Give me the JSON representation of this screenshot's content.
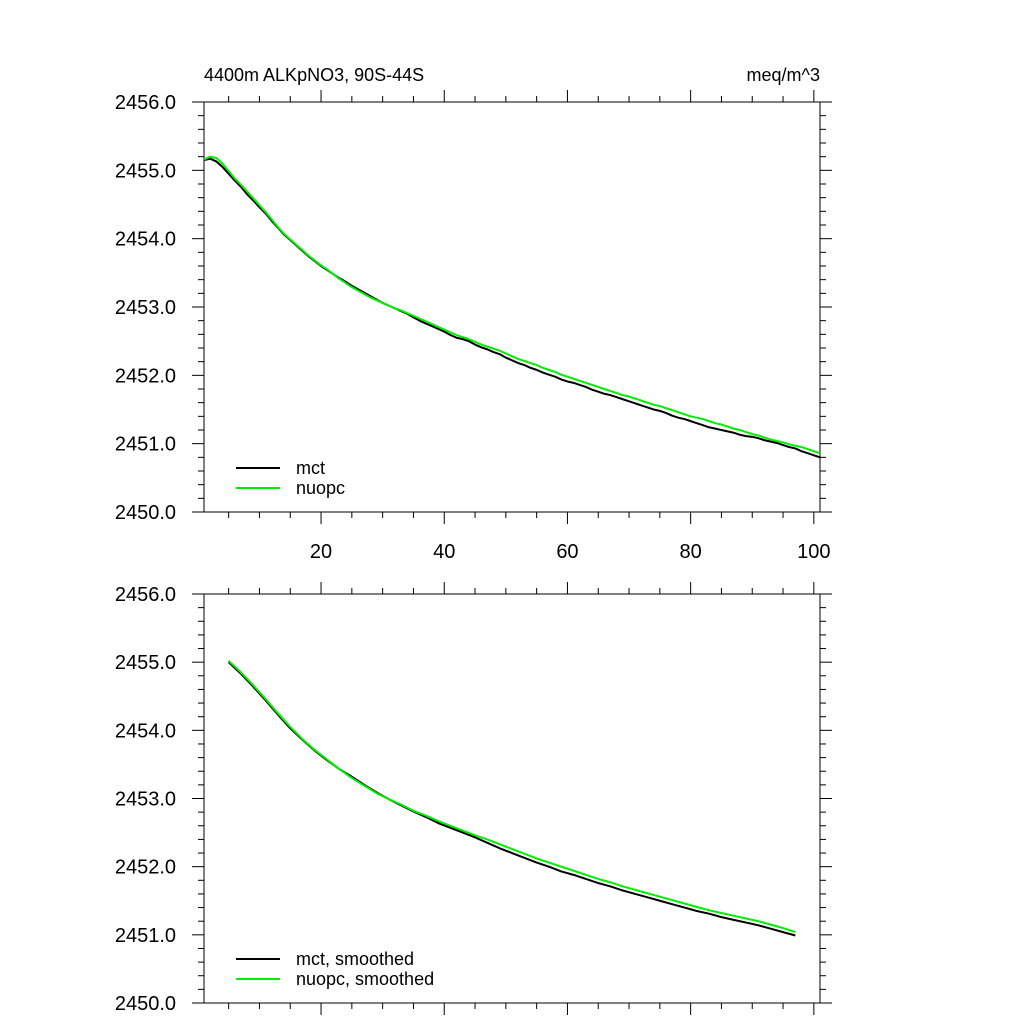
{
  "header": {
    "left_title": "4400m ALKpNO3, 90S-44S",
    "right_title": "meq/m^3"
  },
  "colors": {
    "mct": "#000000",
    "nuopc": "#00ee00"
  },
  "chart_data": [
    {
      "type": "line",
      "title": "4400m ALKpNO3, 90S-44S",
      "units": "meq/m^3",
      "xlim": [
        1,
        101
      ],
      "ylim": [
        2450.0,
        2456.0
      ],
      "x_ticks": [
        20,
        40,
        60,
        80,
        100
      ],
      "x_tick_labels": [
        "20",
        "40",
        "60",
        "80",
        "100"
      ],
      "y_ticks": [
        2450.0,
        2451.0,
        2452.0,
        2453.0,
        2454.0,
        2455.0,
        2456.0
      ],
      "y_tick_labels": [
        "2450.0",
        "2451.0",
        "2452.0",
        "2453.0",
        "2454.0",
        "2455.0",
        "2456.0"
      ],
      "grid": false,
      "legend_position": "bottom-left",
      "series": [
        {
          "name": "mct",
          "color": "#000000",
          "x": [
            1,
            2,
            3,
            4,
            5,
            6,
            7,
            8,
            9,
            10,
            11,
            12,
            13,
            14,
            15,
            16,
            17,
            18,
            19,
            20,
            21,
            22,
            23,
            24,
            25,
            26,
            27,
            28,
            29,
            30,
            31,
            32,
            33,
            34,
            35,
            36,
            37,
            38,
            39,
            40,
            41,
            42,
            43,
            44,
            45,
            46,
            47,
            48,
            49,
            50,
            51,
            52,
            53,
            54,
            55,
            56,
            57,
            58,
            59,
            60,
            61,
            62,
            63,
            64,
            65,
            66,
            67,
            68,
            69,
            70,
            71,
            72,
            73,
            74,
            75,
            76,
            77,
            78,
            79,
            80,
            81,
            82,
            83,
            84,
            85,
            86,
            87,
            88,
            89,
            90,
            91,
            92,
            93,
            94,
            95,
            96,
            97,
            98,
            99,
            100,
            101
          ],
          "values": [
            2455.15,
            2455.17,
            2455.13,
            2455.05,
            2454.95,
            2454.85,
            2454.76,
            2454.65,
            2454.56,
            2454.46,
            2454.37,
            2454.26,
            2454.16,
            2454.06,
            2453.98,
            2453.9,
            2453.82,
            2453.74,
            2453.67,
            2453.6,
            2453.54,
            2453.48,
            2453.42,
            2453.37,
            2453.31,
            2453.26,
            2453.21,
            2453.16,
            2453.11,
            2453.06,
            2453.02,
            2452.98,
            2452.94,
            2452.9,
            2452.85,
            2452.8,
            2452.76,
            2452.72,
            2452.68,
            2452.64,
            2452.59,
            2452.55,
            2452.53,
            2452.5,
            2452.45,
            2452.41,
            2452.38,
            2452.34,
            2452.31,
            2452.26,
            2452.22,
            2452.18,
            2452.15,
            2452.11,
            2452.08,
            2452.04,
            2452.01,
            2451.98,
            2451.94,
            2451.91,
            2451.89,
            2451.86,
            2451.83,
            2451.79,
            2451.76,
            2451.73,
            2451.71,
            2451.68,
            2451.65,
            2451.62,
            2451.59,
            2451.56,
            2451.53,
            2451.5,
            2451.48,
            2451.45,
            2451.41,
            2451.38,
            2451.36,
            2451.33,
            2451.3,
            2451.27,
            2451.24,
            2451.22,
            2451.2,
            2451.18,
            2451.16,
            2451.13,
            2451.11,
            2451.1,
            2451.08,
            2451.05,
            2451.03,
            2451.01,
            2450.98,
            2450.95,
            2450.93,
            2450.89,
            2450.86,
            2450.83,
            2450.8
          ]
        },
        {
          "name": "nuopc",
          "color": "#00ee00",
          "x": [
            1,
            2,
            3,
            4,
            5,
            6,
            7,
            8,
            9,
            10,
            11,
            12,
            13,
            14,
            15,
            16,
            17,
            18,
            19,
            20,
            21,
            22,
            23,
            24,
            25,
            26,
            27,
            28,
            29,
            30,
            31,
            32,
            33,
            34,
            35,
            36,
            37,
            38,
            39,
            40,
            41,
            42,
            43,
            44,
            45,
            46,
            47,
            48,
            49,
            50,
            51,
            52,
            53,
            54,
            55,
            56,
            57,
            58,
            59,
            60,
            61,
            62,
            63,
            64,
            65,
            66,
            67,
            68,
            69,
            70,
            71,
            72,
            73,
            74,
            75,
            76,
            77,
            78,
            79,
            80,
            81,
            82,
            83,
            84,
            85,
            86,
            87,
            88,
            89,
            90,
            91,
            92,
            93,
            94,
            95,
            96,
            97,
            98,
            99,
            100,
            101
          ],
          "values": [
            2455.16,
            2455.2,
            2455.18,
            2455.1,
            2454.99,
            2454.88,
            2454.79,
            2454.69,
            2454.59,
            2454.49,
            2454.39,
            2454.28,
            2454.17,
            2454.07,
            2453.99,
            2453.91,
            2453.83,
            2453.75,
            2453.68,
            2453.61,
            2453.55,
            2453.48,
            2453.41,
            2453.35,
            2453.29,
            2453.24,
            2453.19,
            2453.14,
            2453.1,
            2453.06,
            2453.02,
            2452.98,
            2452.95,
            2452.91,
            2452.87,
            2452.83,
            2452.79,
            2452.75,
            2452.71,
            2452.67,
            2452.63,
            2452.59,
            2452.56,
            2452.53,
            2452.49,
            2452.45,
            2452.42,
            2452.39,
            2452.36,
            2452.32,
            2452.28,
            2452.24,
            2452.21,
            2452.18,
            2452.15,
            2452.11,
            2452.08,
            2452.05,
            2452.01,
            2451.98,
            2451.95,
            2451.92,
            2451.89,
            2451.86,
            2451.83,
            2451.8,
            2451.77,
            2451.74,
            2451.71,
            2451.69,
            2451.66,
            2451.63,
            2451.6,
            2451.57,
            2451.55,
            2451.52,
            2451.49,
            2451.46,
            2451.43,
            2451.4,
            2451.38,
            2451.36,
            2451.33,
            2451.3,
            2451.28,
            2451.25,
            2451.22,
            2451.2,
            2451.17,
            2451.14,
            2451.12,
            2451.09,
            2451.06,
            2451.04,
            2451.02,
            2450.99,
            2450.97,
            2450.95,
            2450.92,
            2450.89,
            2450.86
          ]
        }
      ]
    },
    {
      "type": "line",
      "xlim": [
        1,
        101
      ],
      "ylim": [
        2450.0,
        2456.0
      ],
      "x_ticks": [
        20,
        40,
        60,
        80,
        100
      ],
      "x_tick_labels": [],
      "y_ticks": [
        2450.0,
        2451.0,
        2452.0,
        2453.0,
        2454.0,
        2455.0,
        2456.0
      ],
      "y_tick_labels": [
        "2450.0",
        "2451.0",
        "2452.0",
        "2453.0",
        "2454.0",
        "2455.0",
        "2456.0"
      ],
      "grid": false,
      "legend_position": "bottom-left",
      "series": [
        {
          "name": "mct, smoothed",
          "color": "#000000",
          "x": [
            5,
            7,
            9,
            11,
            13,
            15,
            17,
            19,
            21,
            23,
            25,
            27,
            29,
            31,
            33,
            35,
            37,
            39,
            41,
            43,
            45,
            47,
            49,
            51,
            53,
            55,
            57,
            59,
            61,
            63,
            65,
            67,
            69,
            71,
            73,
            75,
            77,
            79,
            81,
            83,
            85,
            87,
            89,
            91,
            93,
            95,
            97
          ],
          "values": [
            2455.0,
            2454.83,
            2454.64,
            2454.44,
            2454.23,
            2454.03,
            2453.86,
            2453.7,
            2453.56,
            2453.43,
            2453.32,
            2453.2,
            2453.09,
            2452.99,
            2452.9,
            2452.81,
            2452.73,
            2452.64,
            2452.57,
            2452.5,
            2452.43,
            2452.35,
            2452.27,
            2452.2,
            2452.13,
            2452.06,
            2452.0,
            2451.93,
            2451.88,
            2451.82,
            2451.76,
            2451.71,
            2451.65,
            2451.6,
            2451.55,
            2451.5,
            2451.45,
            2451.4,
            2451.35,
            2451.31,
            2451.26,
            2451.22,
            2451.18,
            2451.14,
            2451.09,
            2451.04,
            2450.99
          ]
        },
        {
          "name": "nuopc, smoothed",
          "color": "#00ee00",
          "x": [
            5,
            7,
            9,
            11,
            13,
            15,
            17,
            19,
            21,
            23,
            25,
            27,
            29,
            31,
            33,
            35,
            37,
            39,
            41,
            43,
            45,
            47,
            49,
            51,
            53,
            55,
            57,
            59,
            61,
            63,
            65,
            67,
            69,
            71,
            73,
            75,
            77,
            79,
            81,
            83,
            85,
            87,
            89,
            91,
            93,
            95,
            97
          ],
          "values": [
            2455.02,
            2454.85,
            2454.66,
            2454.46,
            2454.25,
            2454.05,
            2453.87,
            2453.71,
            2453.57,
            2453.43,
            2453.3,
            2453.19,
            2453.08,
            2452.99,
            2452.91,
            2452.82,
            2452.75,
            2452.67,
            2452.6,
            2452.53,
            2452.46,
            2452.4,
            2452.33,
            2452.26,
            2452.19,
            2452.12,
            2452.06,
            2452.0,
            2451.94,
            2451.88,
            2451.82,
            2451.77,
            2451.71,
            2451.66,
            2451.61,
            2451.56,
            2451.51,
            2451.46,
            2451.41,
            2451.36,
            2451.32,
            2451.28,
            2451.24,
            2451.2,
            2451.15,
            2451.1,
            2451.04
          ]
        }
      ]
    }
  ]
}
